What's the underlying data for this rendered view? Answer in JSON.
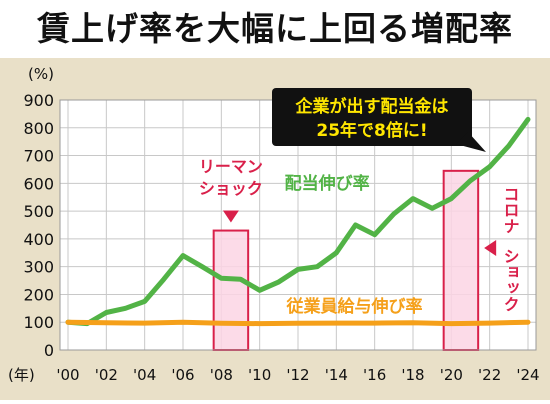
{
  "title": "賃上げ率を大幅に上回る増配率",
  "chart_data": {
    "type": "line",
    "y_unit_label": "(%)",
    "x_unit_label": "(年)",
    "ylim": [
      0,
      900
    ],
    "yticks": [
      0,
      100,
      200,
      300,
      400,
      500,
      600,
      700,
      800,
      900
    ],
    "xlim": [
      2000,
      2024
    ],
    "xticks": [
      {
        "v": 2000,
        "label": "'00"
      },
      {
        "v": 2002,
        "label": "'02"
      },
      {
        "v": 2004,
        "label": "'04"
      },
      {
        "v": 2006,
        "label": "'06"
      },
      {
        "v": 2008,
        "label": "'08"
      },
      {
        "v": 2010,
        "label": "'10"
      },
      {
        "v": 2012,
        "label": "'12"
      },
      {
        "v": 2014,
        "label": "'14"
      },
      {
        "v": 2016,
        "label": "'16"
      },
      {
        "v": 2018,
        "label": "'18"
      },
      {
        "v": 2020,
        "label": "'20"
      },
      {
        "v": 2022,
        "label": "'22"
      },
      {
        "v": 2024,
        "label": "'24"
      }
    ],
    "grid": true,
    "series": [
      {
        "name": "配当伸び率",
        "color": "#52b346",
        "x": [
          2000,
          2001,
          2002,
          2003,
          2004,
          2005,
          2006,
          2007,
          2008,
          2009,
          2010,
          2011,
          2012,
          2013,
          2014,
          2015,
          2016,
          2017,
          2018,
          2019,
          2020,
          2021,
          2022,
          2023,
          2024
        ],
        "values": [
          100,
          95,
          135,
          150,
          175,
          255,
          340,
          300,
          258,
          255,
          215,
          245,
          290,
          300,
          350,
          450,
          415,
          490,
          545,
          510,
          545,
          610,
          660,
          735,
          830
        ]
      },
      {
        "name": "従業員給与伸び率",
        "color": "#f5a01a",
        "x": [
          2000,
          2002,
          2004,
          2006,
          2008,
          2010,
          2012,
          2014,
          2016,
          2018,
          2020,
          2022,
          2024
        ],
        "values": [
          100,
          98,
          97,
          100,
          96,
          95,
          96,
          97,
          97,
          98,
          95,
          97,
          100
        ]
      }
    ],
    "highlights": [
      {
        "label": "リーマンショック",
        "line1": "リーマン",
        "line2": "ショック",
        "x_from": 2007.6,
        "x_to": 2009.4,
        "y_from": 0,
        "y_to": 430
      },
      {
        "label": "コロナショック",
        "line1": "コロナ",
        "line2": "ショック",
        "x_from": 2019.6,
        "x_to": 2021.4,
        "y_from": 0,
        "y_to": 645
      }
    ],
    "callout": {
      "line1": "企業が出す配当金は",
      "line2": "25年で8倍に!"
    }
  }
}
